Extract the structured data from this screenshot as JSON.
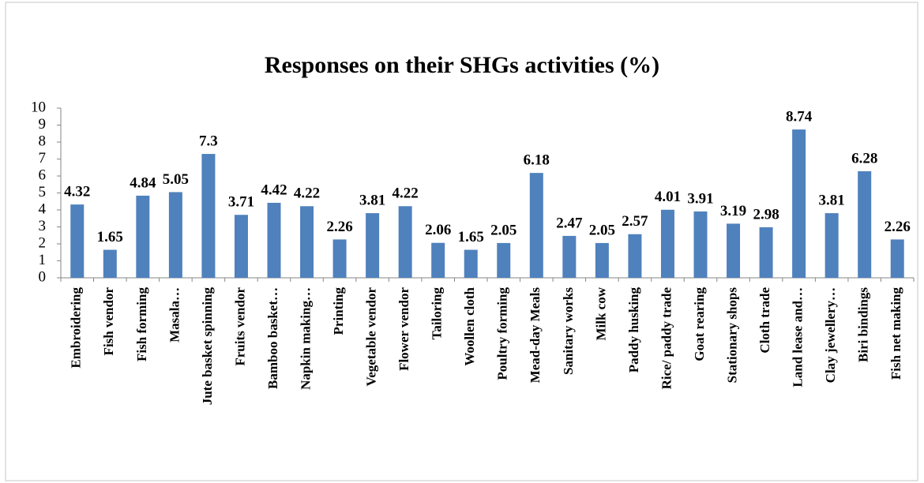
{
  "chart_data": {
    "type": "bar",
    "title": "Responses on their SHGs activities (%)",
    "categories": [
      "Embroidering",
      "Fish vendor",
      "Fish forming",
      "Masala…",
      "Jute basket spinning",
      "Fruits vendor",
      "Bamboo basket…",
      "Napkin making…",
      "Printing",
      "Vegetable vendor",
      "Flower vendor",
      "Tailoring",
      "Woollen cloth",
      "Poultry forming",
      "Mead-day Meals",
      "Sanitary works",
      "Milk cow",
      "Paddy husking",
      "Rice/ paddy trade",
      "Goat rearing",
      "Stationary shops",
      "Cloth trade",
      "Land lease and…",
      "Clay jewellery…",
      "Biri bindings",
      "Fish net making"
    ],
    "values": [
      4.32,
      1.65,
      4.84,
      5.05,
      7.3,
      3.71,
      4.42,
      4.22,
      2.26,
      3.81,
      4.22,
      2.06,
      1.65,
      2.05,
      6.18,
      2.47,
      2.05,
      2.57,
      4.01,
      3.91,
      3.19,
      2.98,
      8.74,
      3.81,
      6.28,
      2.26
    ],
    "color": "#4f81bd",
    "ylim": [
      0,
      10
    ],
    "yticks": [
      0,
      1,
      2,
      3,
      4,
      5,
      6,
      7,
      8,
      9,
      10
    ],
    "grid": false
  }
}
